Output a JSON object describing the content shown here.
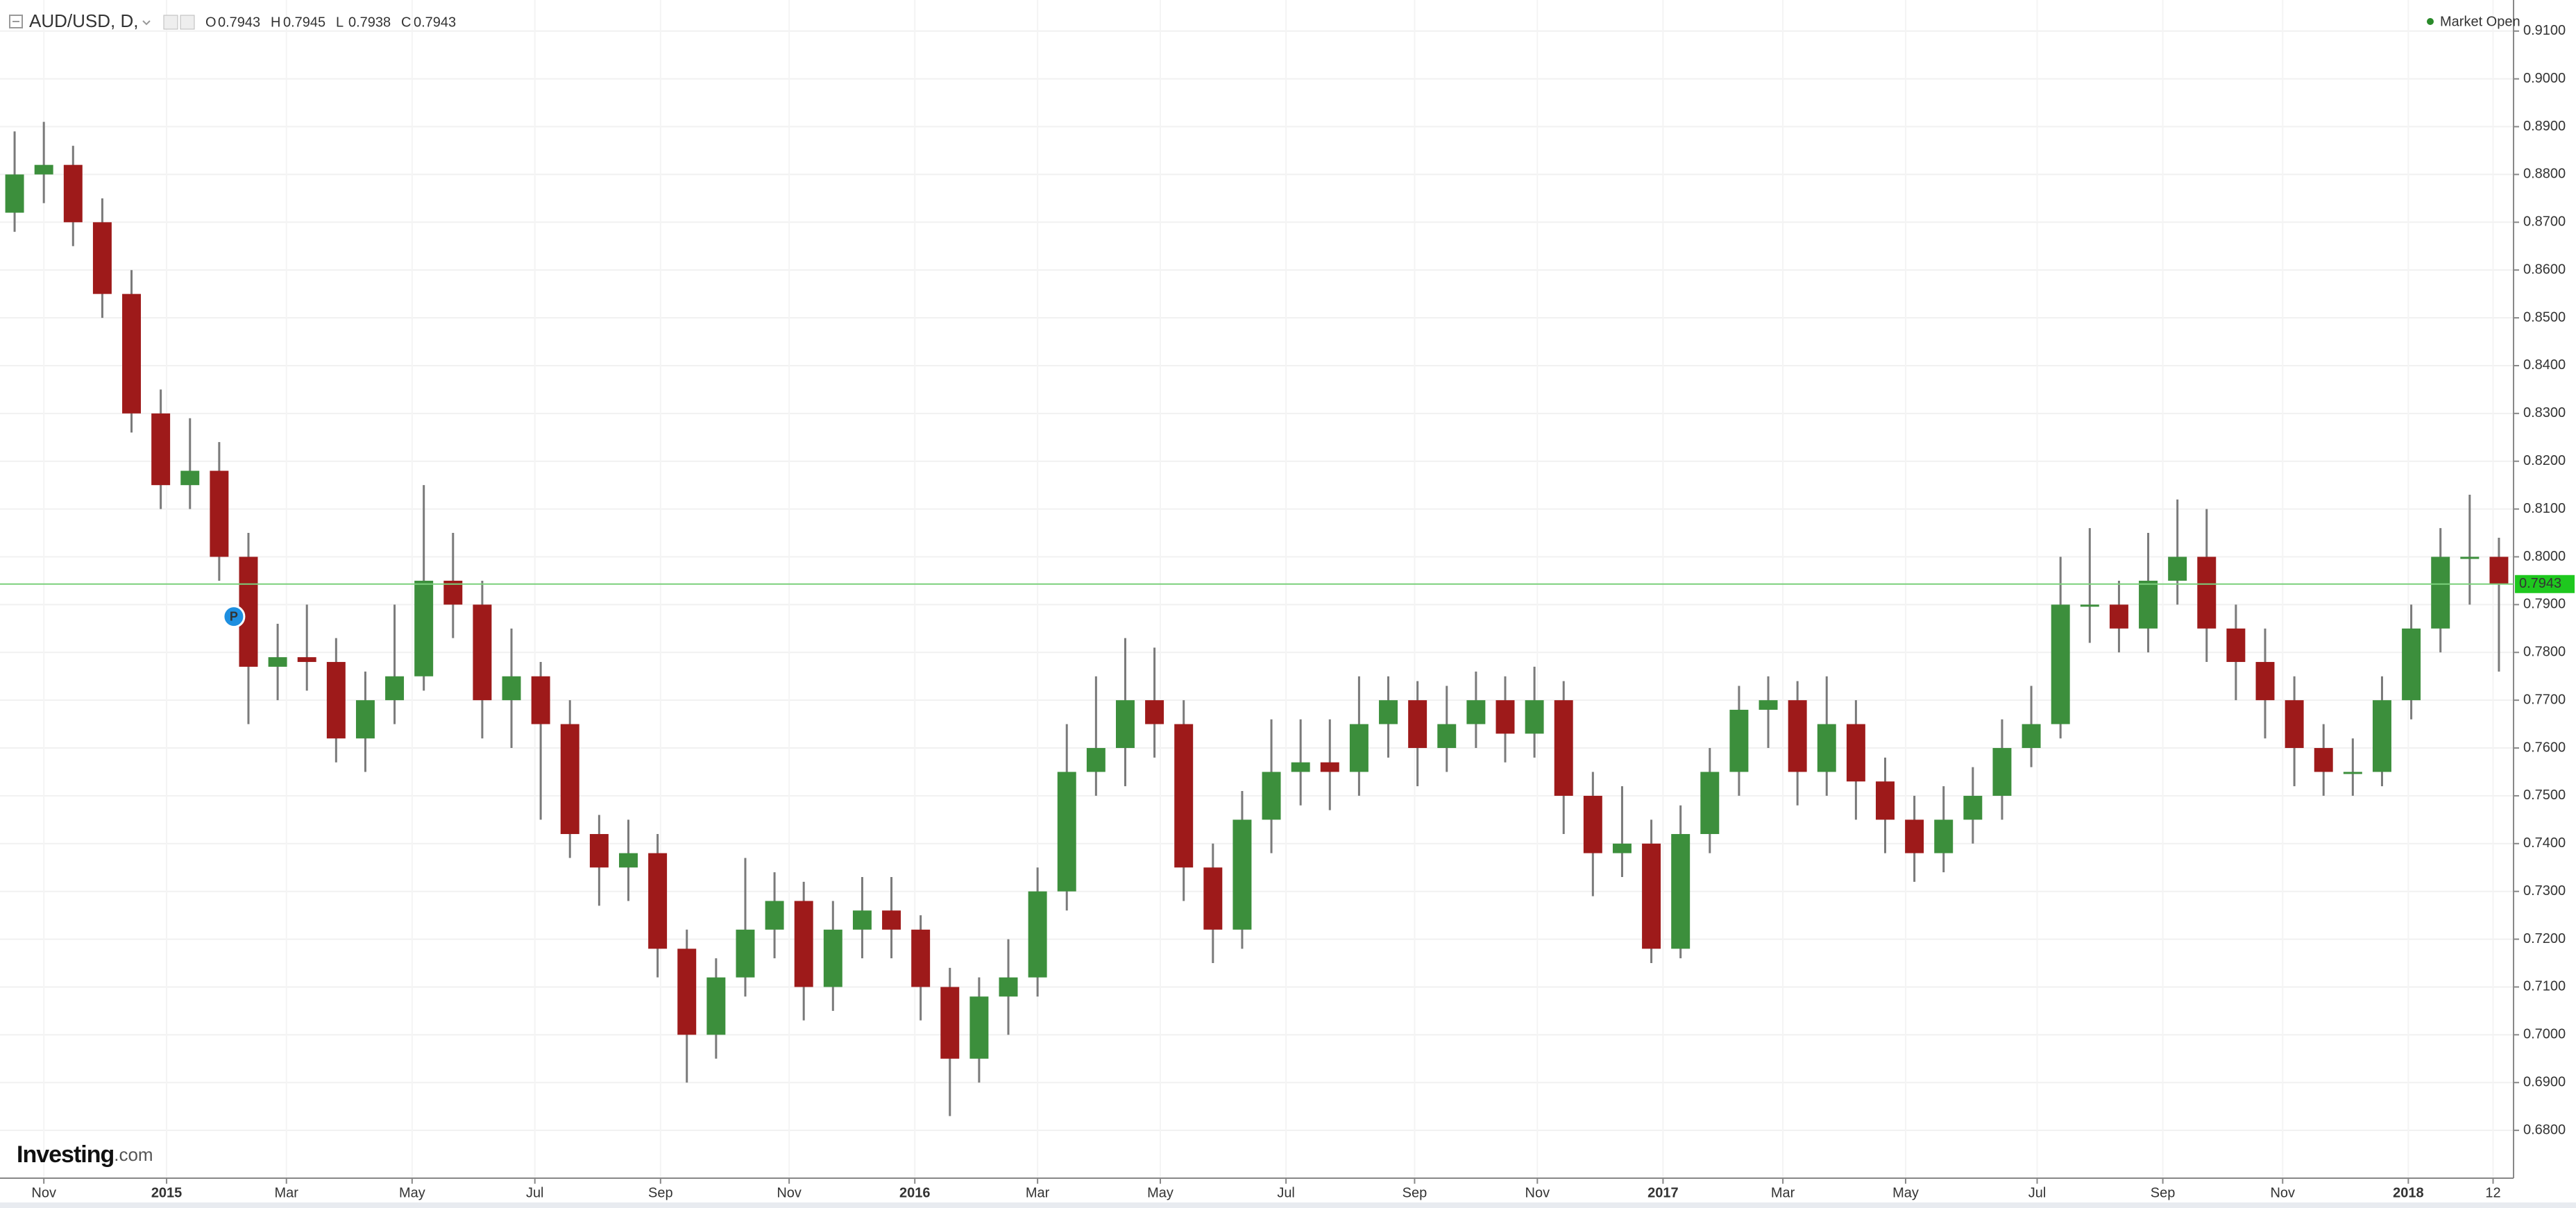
{
  "chart_data": {
    "type": "candlestick",
    "title": "AUD/USD, D,",
    "ohlc_header": [
      {
        "key": "O",
        "value": 0.7943
      },
      {
        "key": "H",
        "value": 0.7945
      },
      {
        "key": "L",
        "value": 0.7938
      },
      {
        "key": "C",
        "value": 0.7943
      }
    ],
    "status": "Market Open",
    "logo": {
      "name": "Investing",
      "suffix": ".com"
    },
    "marker": {
      "label": "P",
      "index": 7.5,
      "price": 0.7875
    },
    "last_price": 0.7943,
    "series": {
      "up_color": "#3c8f3c",
      "down_color": "#9e1a1a",
      "open": [
        0.872,
        0.88,
        0.882,
        0.87,
        0.855,
        0.83,
        0.815,
        0.818,
        0.8,
        0.777,
        0.779,
        0.778,
        0.762,
        0.77,
        0.775,
        0.795,
        0.79,
        0.77,
        0.775,
        0.765,
        0.742,
        0.735,
        0.738,
        0.718,
        0.7,
        0.712,
        0.722,
        0.728,
        0.71,
        0.722,
        0.726,
        0.722,
        0.71,
        0.695,
        0.708,
        0.712,
        0.73,
        0.755,
        0.76,
        0.77,
        0.765,
        0.735,
        0.722,
        0.745,
        0.755,
        0.757,
        0.755,
        0.765,
        0.77,
        0.76,
        0.765,
        0.77,
        0.763,
        0.77,
        0.75,
        0.738,
        0.74,
        0.718,
        0.742,
        0.755,
        0.768,
        0.77,
        0.755,
        0.765,
        0.753,
        0.745,
        0.738,
        0.745,
        0.75,
        0.76,
        0.765,
        0.79,
        0.79,
        0.785,
        0.795,
        0.8,
        0.785,
        0.778,
        0.77,
        0.76,
        0.755,
        0.755,
        0.77,
        0.785,
        0.8,
        0.8
      ],
      "high": [
        0.889,
        0.891,
        0.886,
        0.875,
        0.86,
        0.835,
        0.829,
        0.824,
        0.805,
        0.786,
        0.79,
        0.783,
        0.776,
        0.79,
        0.815,
        0.805,
        0.795,
        0.785,
        0.778,
        0.77,
        0.746,
        0.745,
        0.742,
        0.722,
        0.716,
        0.737,
        0.734,
        0.732,
        0.728,
        0.733,
        0.733,
        0.725,
        0.714,
        0.712,
        0.72,
        0.735,
        0.765,
        0.775,
        0.783,
        0.781,
        0.77,
        0.74,
        0.751,
        0.766,
        0.766,
        0.766,
        0.775,
        0.775,
        0.774,
        0.773,
        0.776,
        0.775,
        0.777,
        0.774,
        0.755,
        0.752,
        0.745,
        0.748,
        0.76,
        0.773,
        0.775,
        0.774,
        0.775,
        0.77,
        0.758,
        0.75,
        0.752,
        0.756,
        0.766,
        0.773,
        0.8,
        0.806,
        0.795,
        0.805,
        0.812,
        0.81,
        0.79,
        0.785,
        0.775,
        0.765,
        0.762,
        0.775,
        0.79,
        0.806,
        0.813,
        0.804
      ],
      "low": [
        0.868,
        0.874,
        0.865,
        0.85,
        0.826,
        0.81,
        0.81,
        0.795,
        0.765,
        0.77,
        0.772,
        0.757,
        0.755,
        0.765,
        0.772,
        0.783,
        0.762,
        0.76,
        0.745,
        0.737,
        0.727,
        0.728,
        0.712,
        0.69,
        0.695,
        0.708,
        0.716,
        0.703,
        0.705,
        0.716,
        0.716,
        0.703,
        0.683,
        0.69,
        0.7,
        0.708,
        0.726,
        0.75,
        0.752,
        0.758,
        0.728,
        0.715,
        0.718,
        0.738,
        0.748,
        0.747,
        0.75,
        0.758,
        0.752,
        0.755,
        0.76,
        0.757,
        0.758,
        0.742,
        0.729,
        0.733,
        0.715,
        0.716,
        0.738,
        0.75,
        0.76,
        0.748,
        0.75,
        0.745,
        0.738,
        0.732,
        0.734,
        0.74,
        0.745,
        0.756,
        0.762,
        0.782,
        0.78,
        0.78,
        0.79,
        0.778,
        0.77,
        0.762,
        0.752,
        0.75,
        0.75,
        0.752,
        0.766,
        0.78,
        0.79,
        0.776
      ],
      "close": [
        0.88,
        0.882,
        0.87,
        0.855,
        0.83,
        0.815,
        0.818,
        0.8,
        0.777,
        0.779,
        0.778,
        0.762,
        0.77,
        0.775,
        0.795,
        0.79,
        0.77,
        0.775,
        0.765,
        0.742,
        0.735,
        0.738,
        0.718,
        0.7,
        0.712,
        0.722,
        0.728,
        0.71,
        0.722,
        0.726,
        0.722,
        0.71,
        0.695,
        0.708,
        0.712,
        0.73,
        0.755,
        0.76,
        0.77,
        0.765,
        0.735,
        0.722,
        0.745,
        0.755,
        0.757,
        0.755,
        0.765,
        0.77,
        0.76,
        0.765,
        0.77,
        0.763,
        0.77,
        0.75,
        0.738,
        0.74,
        0.718,
        0.742,
        0.755,
        0.768,
        0.77,
        0.755,
        0.765,
        0.753,
        0.745,
        0.738,
        0.745,
        0.75,
        0.76,
        0.765,
        0.79,
        0.79,
        0.785,
        0.795,
        0.8,
        0.785,
        0.778,
        0.77,
        0.76,
        0.755,
        0.755,
        0.77,
        0.785,
        0.8,
        0.8,
        0.7943
      ]
    },
    "xlim": [
      -0.5,
      85.5
    ],
    "xticks": [
      {
        "value": 1.0,
        "label": "Nov"
      },
      {
        "value": 5.2,
        "label": "2015"
      },
      {
        "value": 9.3,
        "label": "Mar"
      },
      {
        "value": 13.6,
        "label": "May"
      },
      {
        "value": 17.8,
        "label": "Jul"
      },
      {
        "value": 22.1,
        "label": "Sep"
      },
      {
        "value": 26.5,
        "label": "Nov"
      },
      {
        "value": 30.8,
        "label": "2016"
      },
      {
        "value": 35.0,
        "label": "Mar"
      },
      {
        "value": 39.2,
        "label": "May"
      },
      {
        "value": 43.5,
        "label": "Jul"
      },
      {
        "value": 47.9,
        "label": "Sep"
      },
      {
        "value": 52.1,
        "label": "Nov"
      },
      {
        "value": 56.4,
        "label": "2017"
      },
      {
        "value": 60.5,
        "label": "Mar"
      },
      {
        "value": 64.7,
        "label": "May"
      },
      {
        "value": 69.2,
        "label": "Jul"
      },
      {
        "value": 73.5,
        "label": "Sep"
      },
      {
        "value": 77.6,
        "label": "Nov"
      },
      {
        "value": 81.9,
        "label": "2018"
      },
      {
        "value": 84.8,
        "label": "12"
      }
    ],
    "ylim": [
      0.67,
      0.9165
    ],
    "yticks": [
      {
        "value": 0.68,
        "label": "0.6800"
      },
      {
        "value": 0.69,
        "label": "0.6900"
      },
      {
        "value": 0.7,
        "label": "0.7000"
      },
      {
        "value": 0.71,
        "label": "0.7100"
      },
      {
        "value": 0.72,
        "label": "0.7200"
      },
      {
        "value": 0.73,
        "label": "0.7300"
      },
      {
        "value": 0.74,
        "label": "0.7400"
      },
      {
        "value": 0.75,
        "label": "0.7500"
      },
      {
        "value": 0.76,
        "label": "0.7600"
      },
      {
        "value": 0.77,
        "label": "0.7700"
      },
      {
        "value": 0.78,
        "label": "0.7800"
      },
      {
        "value": 0.79,
        "label": "0.7900"
      },
      {
        "value": 0.8,
        "label": "0.8000"
      },
      {
        "value": 0.81,
        "label": "0.8100"
      },
      {
        "value": 0.82,
        "label": "0.8200"
      },
      {
        "value": 0.83,
        "label": "0.8300"
      },
      {
        "value": 0.84,
        "label": "0.8400"
      },
      {
        "value": 0.85,
        "label": "0.8500"
      },
      {
        "value": 0.86,
        "label": "0.8600"
      },
      {
        "value": 0.87,
        "label": "0.8700"
      },
      {
        "value": 0.88,
        "label": "0.8800"
      },
      {
        "value": 0.89,
        "label": "0.8900"
      },
      {
        "value": 0.9,
        "label": "0.9000"
      },
      {
        "value": 0.91,
        "label": "0.9100"
      }
    ],
    "grid": true
  }
}
